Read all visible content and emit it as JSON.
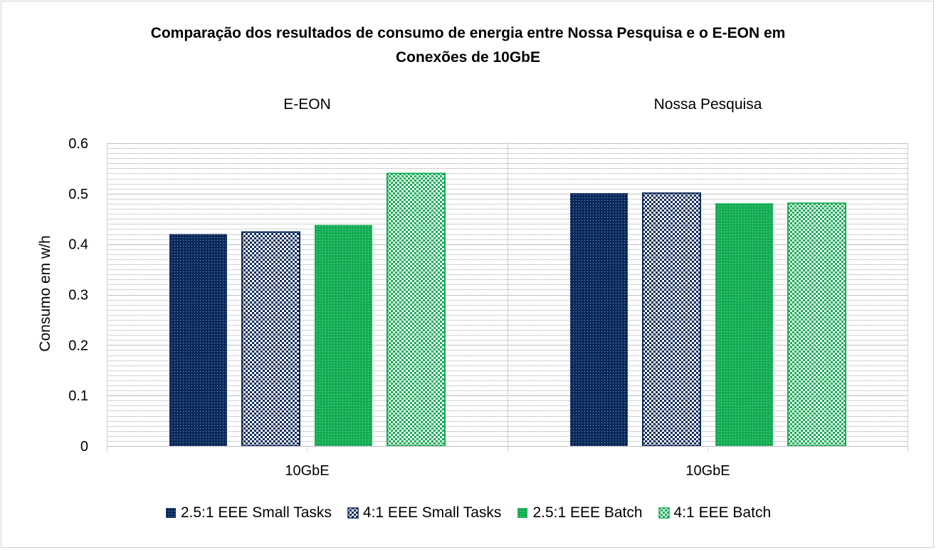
{
  "chart_data": {
    "type": "bar",
    "title_lines": [
      "Comparação dos resultados de consumo de energia entre Nossa Pesquisa e o E-EON em",
      "Conexões de 10GbE"
    ],
    "ylabel": "Consumo em w/h",
    "ylim": [
      0,
      0.6
    ],
    "yticks": [
      "0",
      "0.1",
      "0.2",
      "0.3",
      "0.4",
      "0.5",
      "0.6"
    ],
    "grid": true,
    "legend_position": "bottom",
    "panels": [
      {
        "label": "E-EON",
        "category": "10GbE",
        "values": [
          0.42,
          0.424,
          0.438,
          0.54
        ]
      },
      {
        "label": "Nossa Pesquisa",
        "category": "10GbE",
        "values": [
          0.501,
          0.501,
          0.481,
          0.481
        ]
      }
    ],
    "series": [
      {
        "name": "2.5:1 EEE Small Tasks",
        "color": "#0b2a5b",
        "pattern": "dots-dark"
      },
      {
        "name": "4:1 EEE Small Tasks",
        "color": "#0b2a5b",
        "pattern": "checker-dark"
      },
      {
        "name": "2.5:1 EEE Batch",
        "color": "#14ad54",
        "pattern": "dots-green"
      },
      {
        "name": "4:1 EEE Batch",
        "color": "#14ad54",
        "pattern": "checker-green"
      }
    ]
  }
}
